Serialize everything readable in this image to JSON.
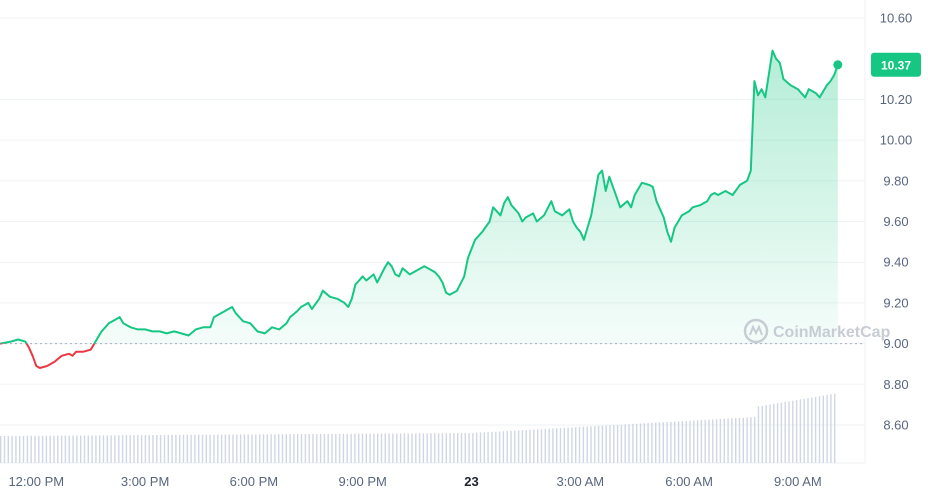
{
  "watermark": "CoinMarketCap",
  "colors": {
    "up": "#16c784",
    "down": "#ea3943",
    "grid": "#eff2f5",
    "baseline": "#a6b0c3",
    "volume": "#cfd6e4",
    "badge": "#16c784"
  },
  "chart_data": {
    "type": "line",
    "title": "",
    "xlabel": "",
    "ylabel": "",
    "ylim": [
      8.45,
      10.68
    ],
    "y_ticks": [
      "10.60",
      "10.20",
      "10.00",
      "9.80",
      "9.60",
      "9.40",
      "9.20",
      "9.00",
      "8.80",
      "8.60"
    ],
    "x_ticks": [
      "12:00 PM",
      "3:00 PM",
      "6:00 PM",
      "9:00 PM",
      "23",
      "3:00 AM",
      "6:00 AM",
      "9:00 AM"
    ],
    "x_tick_hours": [
      1,
      4,
      7,
      10,
      13,
      16,
      19,
      22
    ],
    "bold_tick": "23",
    "x_range_hours": [
      0,
      23.85
    ],
    "baseline": 9.0,
    "current_price": "10.37",
    "grid": true,
    "series": [
      {
        "values": [
          [
            0.0,
            9.0
          ],
          [
            0.3,
            9.01
          ],
          [
            0.5,
            9.02
          ],
          [
            0.7,
            9.01
          ],
          [
            0.8,
            8.98
          ],
          [
            0.9,
            8.94
          ],
          [
            1.0,
            8.89
          ],
          [
            1.1,
            8.88
          ],
          [
            1.3,
            8.89
          ],
          [
            1.5,
            8.91
          ],
          [
            1.7,
            8.94
          ],
          [
            1.9,
            8.95
          ],
          [
            2.0,
            8.94
          ],
          [
            2.1,
            8.96
          ],
          [
            2.3,
            8.96
          ],
          [
            2.5,
            8.97
          ],
          [
            2.6,
            9.0
          ],
          [
            2.7,
            9.03
          ],
          [
            2.8,
            9.06
          ],
          [
            3.0,
            9.1
          ],
          [
            3.2,
            9.12
          ],
          [
            3.3,
            9.13
          ],
          [
            3.4,
            9.1
          ],
          [
            3.6,
            9.08
          ],
          [
            3.8,
            9.07
          ],
          [
            4.0,
            9.07
          ],
          [
            4.2,
            9.06
          ],
          [
            4.4,
            9.06
          ],
          [
            4.6,
            9.05
          ],
          [
            4.8,
            9.06
          ],
          [
            5.0,
            9.05
          ],
          [
            5.2,
            9.04
          ],
          [
            5.4,
            9.07
          ],
          [
            5.6,
            9.08
          ],
          [
            5.8,
            9.08
          ],
          [
            5.9,
            9.13
          ],
          [
            6.1,
            9.15
          ],
          [
            6.3,
            9.17
          ],
          [
            6.4,
            9.18
          ],
          [
            6.5,
            9.15
          ],
          [
            6.7,
            9.11
          ],
          [
            6.9,
            9.1
          ],
          [
            7.1,
            9.06
          ],
          [
            7.3,
            9.05
          ],
          [
            7.5,
            9.08
          ],
          [
            7.7,
            9.07
          ],
          [
            7.9,
            9.1
          ],
          [
            8.0,
            9.13
          ],
          [
            8.2,
            9.16
          ],
          [
            8.3,
            9.18
          ],
          [
            8.5,
            9.2
          ],
          [
            8.6,
            9.17
          ],
          [
            8.8,
            9.22
          ],
          [
            8.9,
            9.26
          ],
          [
            9.1,
            9.23
          ],
          [
            9.3,
            9.22
          ],
          [
            9.5,
            9.2
          ],
          [
            9.6,
            9.18
          ],
          [
            9.7,
            9.22
          ],
          [
            9.8,
            9.29
          ],
          [
            10.0,
            9.33
          ],
          [
            10.1,
            9.31
          ],
          [
            10.3,
            9.34
          ],
          [
            10.4,
            9.3
          ],
          [
            10.6,
            9.37
          ],
          [
            10.7,
            9.4
          ],
          [
            10.8,
            9.38
          ],
          [
            10.9,
            9.34
          ],
          [
            11.0,
            9.33
          ],
          [
            11.1,
            9.37
          ],
          [
            11.3,
            9.34
          ],
          [
            11.5,
            9.36
          ],
          [
            11.7,
            9.38
          ],
          [
            11.9,
            9.36
          ],
          [
            12.0,
            9.35
          ],
          [
            12.1,
            9.33
          ],
          [
            12.2,
            9.3
          ],
          [
            12.3,
            9.25
          ],
          [
            12.4,
            9.24
          ],
          [
            12.6,
            9.26
          ],
          [
            12.8,
            9.33
          ],
          [
            12.9,
            9.42
          ],
          [
            13.1,
            9.51
          ],
          [
            13.3,
            9.55
          ],
          [
            13.5,
            9.6
          ],
          [
            13.6,
            9.67
          ],
          [
            13.8,
            9.63
          ],
          [
            13.9,
            9.69
          ],
          [
            14.0,
            9.72
          ],
          [
            14.1,
            9.68
          ],
          [
            14.3,
            9.64
          ],
          [
            14.4,
            9.6
          ],
          [
            14.5,
            9.62
          ],
          [
            14.7,
            9.64
          ],
          [
            14.8,
            9.6
          ],
          [
            15.0,
            9.63
          ],
          [
            15.2,
            9.7
          ],
          [
            15.3,
            9.65
          ],
          [
            15.5,
            9.63
          ],
          [
            15.7,
            9.66
          ],
          [
            15.8,
            9.6
          ],
          [
            15.9,
            9.57
          ],
          [
            16.0,
            9.55
          ],
          [
            16.1,
            9.51
          ],
          [
            16.2,
            9.57
          ],
          [
            16.3,
            9.63
          ],
          [
            16.5,
            9.83
          ],
          [
            16.6,
            9.85
          ],
          [
            16.7,
            9.75
          ],
          [
            16.8,
            9.82
          ],
          [
            17.0,
            9.72
          ],
          [
            17.1,
            9.67
          ],
          [
            17.3,
            9.7
          ],
          [
            17.4,
            9.67
          ],
          [
            17.5,
            9.73
          ],
          [
            17.7,
            9.79
          ],
          [
            17.9,
            9.78
          ],
          [
            18.0,
            9.77
          ],
          [
            18.1,
            9.7
          ],
          [
            18.3,
            9.62
          ],
          [
            18.4,
            9.55
          ],
          [
            18.5,
            9.5
          ],
          [
            18.6,
            9.57
          ],
          [
            18.8,
            9.63
          ],
          [
            19.0,
            9.65
          ],
          [
            19.1,
            9.67
          ],
          [
            19.3,
            9.68
          ],
          [
            19.5,
            9.7
          ],
          [
            19.6,
            9.73
          ],
          [
            19.7,
            9.74
          ],
          [
            19.8,
            9.73
          ],
          [
            20.0,
            9.75
          ],
          [
            20.2,
            9.73
          ],
          [
            20.4,
            9.78
          ],
          [
            20.6,
            9.8
          ],
          [
            20.7,
            9.85
          ],
          [
            20.8,
            10.29
          ],
          [
            20.9,
            10.22
          ],
          [
            21.0,
            10.25
          ],
          [
            21.1,
            10.21
          ],
          [
            21.3,
            10.44
          ],
          [
            21.4,
            10.4
          ],
          [
            21.5,
            10.38
          ],
          [
            21.6,
            10.3
          ],
          [
            21.8,
            10.27
          ],
          [
            22.0,
            10.25
          ],
          [
            22.1,
            10.23
          ],
          [
            22.2,
            10.21
          ],
          [
            22.3,
            10.25
          ],
          [
            22.5,
            10.23
          ],
          [
            22.6,
            10.21
          ],
          [
            22.7,
            10.24
          ],
          [
            22.8,
            10.27
          ],
          [
            22.9,
            10.29
          ],
          [
            23.0,
            10.32
          ],
          [
            23.1,
            10.37
          ]
        ]
      }
    ]
  }
}
